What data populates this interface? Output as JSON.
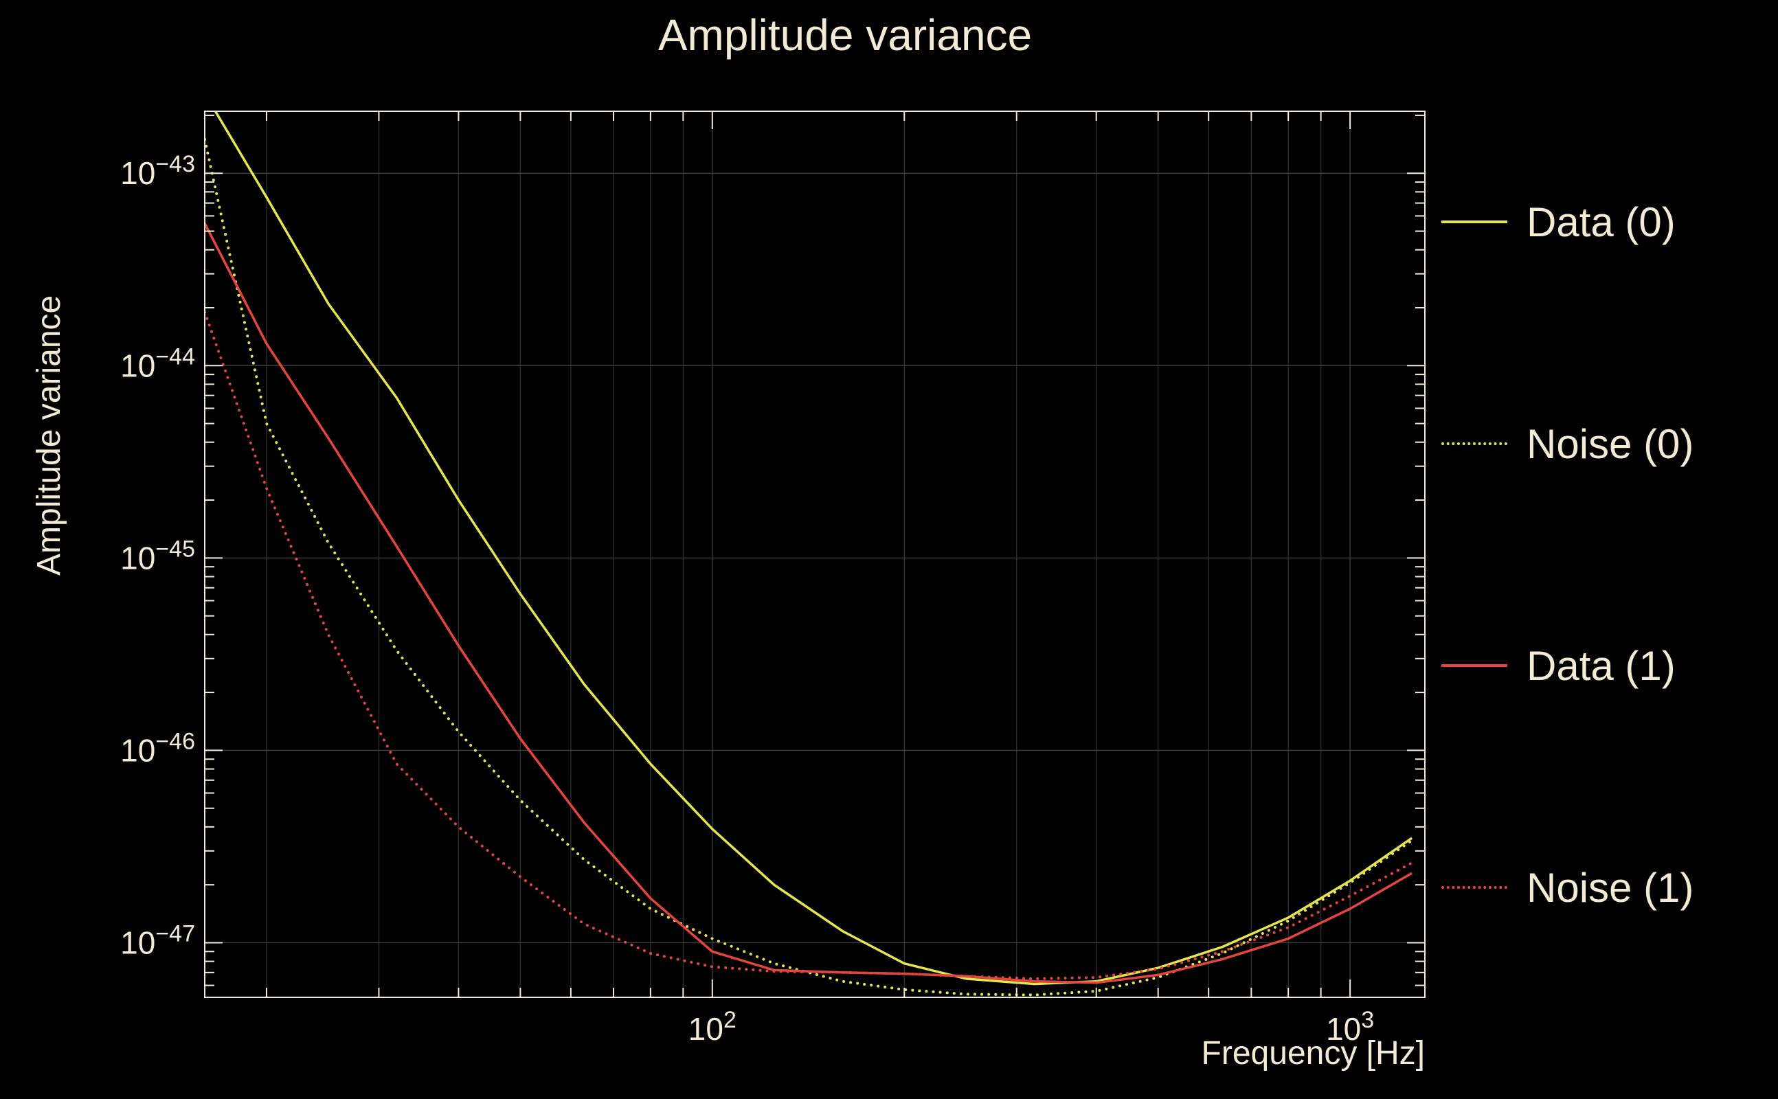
{
  "title": "Amplitude variance",
  "colors": {
    "background": "#000000",
    "foreground": "#f2ebd5",
    "grid_major": "#3a3a3a",
    "grid_minor": "#2a2a2a",
    "frame": "#f2ebd5",
    "yellow": "#e5e550",
    "red": "#e6453e"
  },
  "chart_data": {
    "type": "line",
    "title": "Amplitude variance",
    "xlabel": "Frequency [Hz]",
    "ylabel": "Amplitude variance",
    "xscale": "log",
    "yscale": "log",
    "xlim": [
      16,
      1310
    ],
    "ylim": [
      5.2e-48,
      2.1e-43
    ],
    "x_ticks": [
      100,
      1000
    ],
    "x_tick_labels": [
      "10^2",
      "10^3"
    ],
    "y_ticks": [
      1e-43,
      1e-44,
      1e-45,
      1e-46,
      1e-47
    ],
    "y_tick_labels": [
      "10^-43",
      "10^-44",
      "10^-45",
      "10^-46",
      "10^-47"
    ],
    "grid": true,
    "legend_position": "right",
    "x": [
      16,
      20,
      25,
      32,
      40,
      50,
      63,
      80,
      100,
      125,
      160,
      200,
      250,
      320,
      400,
      500,
      630,
      800,
      1000,
      1250
    ],
    "series": [
      {
        "name": "Data (0)",
        "color": "#e5e550",
        "style": "solid",
        "values": [
          2.6e-43,
          7.5e-44,
          2.1e-44,
          6.8e-45,
          2e-45,
          6.5e-46,
          2.2e-46,
          8.5e-47,
          3.9e-47,
          2e-47,
          1.15e-47,
          7.8e-48,
          6.5e-48,
          6.1e-48,
          6.3e-48,
          7.4e-48,
          9.5e-48,
          1.35e-47,
          2.1e-47,
          3.5e-47
        ]
      },
      {
        "name": "Noise (0)",
        "color": "#e5e550",
        "style": "dotted",
        "values": [
          1.5e-43,
          5e-45,
          1.2e-45,
          3.3e-46,
          1.25e-46,
          5.5e-47,
          2.7e-47,
          1.5e-47,
          1.05e-47,
          7.8e-48,
          6.3e-48,
          5.7e-48,
          5.4e-48,
          5.35e-48,
          5.6e-48,
          6.6e-48,
          8.8e-48,
          1.3e-47,
          2.05e-47,
          3.4e-47
        ]
      },
      {
        "name": "Data (1)",
        "color": "#e6453e",
        "style": "solid",
        "values": [
          5.5e-44,
          1.3e-44,
          4.2e-45,
          1.15e-45,
          3.5e-46,
          1.15e-46,
          4.2e-47,
          1.7e-47,
          9e-48,
          7.2e-48,
          7e-48,
          6.9e-48,
          6.7e-48,
          6.3e-48,
          6.2e-48,
          6.8e-48,
          8.2e-48,
          1.05e-47,
          1.5e-47,
          2.3e-47
        ]
      },
      {
        "name": "Noise (1)",
        "color": "#e6453e",
        "style": "dotted",
        "values": [
          1.9e-44,
          2.3e-45,
          4e-46,
          8.5e-47,
          4e-47,
          2.2e-47,
          1.25e-47,
          8.8e-48,
          7.5e-48,
          7.1e-48,
          7e-48,
          6.9e-48,
          6.7e-48,
          6.5e-48,
          6.6e-48,
          7.3e-48,
          9e-48,
          1.2e-47,
          1.75e-47,
          2.6e-47
        ]
      }
    ]
  }
}
